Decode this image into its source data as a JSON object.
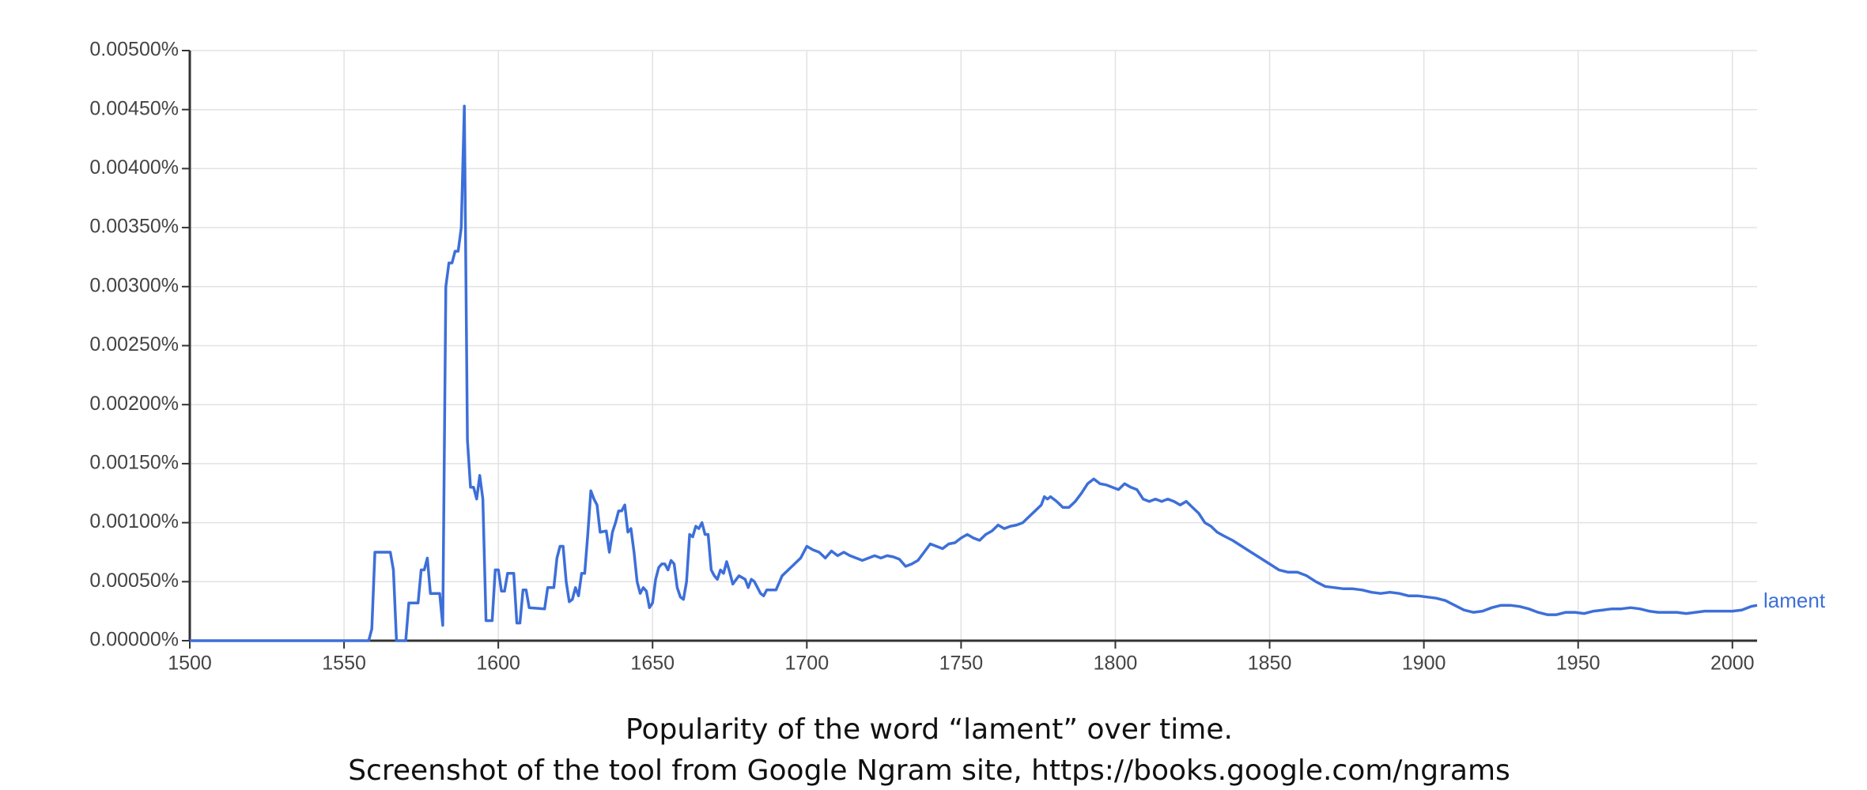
{
  "chart_data": {
    "type": "line",
    "caption_lines": [
      "Popularity of the word “lament” over time.",
      "Screenshot of the tool from Google Ngram site, https://books.google.com/ngrams"
    ],
    "xlim": [
      1500,
      2008
    ],
    "xticks": [
      1500,
      1550,
      1600,
      1650,
      1700,
      1750,
      1800,
      1850,
      1900,
      1950,
      2000
    ],
    "ylim": [
      0,
      0.005
    ],
    "yticks": [
      {
        "value": 0,
        "label": "0.00000%"
      },
      {
        "value": 0.0005,
        "label": "0.00050%"
      },
      {
        "value": 0.001,
        "label": "0.00100%"
      },
      {
        "value": 0.0015,
        "label": "0.00150%"
      },
      {
        "value": 0.002,
        "label": "0.00200%"
      },
      {
        "value": 0.0025,
        "label": "0.00250%"
      },
      {
        "value": 0.003,
        "label": "0.00300%"
      },
      {
        "value": 0.0035,
        "label": "0.00350%"
      },
      {
        "value": 0.004,
        "label": "0.00400%"
      },
      {
        "value": 0.0045,
        "label": "0.00450%"
      },
      {
        "value": 0.005,
        "label": "0.00500%"
      }
    ],
    "grid": true,
    "x": [
      1500,
      1558,
      1559,
      1560,
      1565,
      1566,
      1567,
      1570,
      1571,
      1574,
      1575,
      1576,
      1577,
      1578,
      1581,
      1582,
      1583,
      1584,
      1585,
      1586,
      1587,
      1588,
      1589,
      1590,
      1591,
      1592,
      1593,
      1594,
      1595,
      1596,
      1598,
      1599,
      1600,
      1601,
      1602,
      1603,
      1605,
      1606,
      1607,
      1608,
      1609,
      1610,
      1615,
      1616,
      1618,
      1619,
      1620,
      1621,
      1622,
      1623,
      1624,
      1625,
      1626,
      1627,
      1628,
      1629,
      1630,
      1631,
      1632,
      1633,
      1635,
      1636,
      1637,
      1638,
      1639,
      1640,
      1641,
      1642,
      1643,
      1644,
      1645,
      1646,
      1647,
      1648,
      1649,
      1650,
      1651,
      1652,
      1653,
      1654,
      1655,
      1656,
      1657,
      1658,
      1659,
      1660,
      1661,
      1662,
      1663,
      1664,
      1665,
      1666,
      1667,
      1668,
      1669,
      1670,
      1671,
      1672,
      1673,
      1674,
      1675,
      1676,
      1678,
      1680,
      1681,
      1682,
      1683,
      1685,
      1686,
      1687,
      1690,
      1692,
      1694,
      1696,
      1698,
      1700,
      1702,
      1704,
      1706,
      1708,
      1710,
      1712,
      1714,
      1716,
      1718,
      1720,
      1722,
      1724,
      1726,
      1728,
      1730,
      1732,
      1734,
      1736,
      1738,
      1740,
      1742,
      1744,
      1746,
      1748,
      1750,
      1752,
      1754,
      1756,
      1758,
      1760,
      1762,
      1764,
      1766,
      1768,
      1770,
      1772,
      1774,
      1776,
      1777,
      1778,
      1779,
      1781,
      1783,
      1785,
      1787,
      1789,
      1791,
      1793,
      1795,
      1797,
      1799,
      1801,
      1803,
      1805,
      1807,
      1809,
      1811,
      1813,
      1815,
      1817,
      1819,
      1821,
      1823,
      1825,
      1827,
      1829,
      1831,
      1833,
      1835,
      1838,
      1841,
      1844,
      1847,
      1850,
      1853,
      1856,
      1859,
      1862,
      1865,
      1868,
      1871,
      1874,
      1877,
      1880,
      1883,
      1886,
      1889,
      1892,
      1895,
      1898,
      1901,
      1904,
      1907,
      1910,
      1913,
      1916,
      1919,
      1922,
      1925,
      1928,
      1931,
      1934,
      1937,
      1940,
      1943,
      1946,
      1949,
      1952,
      1955,
      1958,
      1961,
      1964,
      1967,
      1970,
      1973,
      1976,
      1979,
      1982,
      1985,
      1988,
      1991,
      1994,
      1997,
      2000,
      2003,
      2006,
      2008
    ],
    "series": [
      {
        "name": "lament",
        "color": "#3d6fd9",
        "values": [
          0,
          0,
          0.0001,
          0.00075,
          0.00075,
          0.0006,
          0,
          0,
          0.00032,
          0.00032,
          0.0006,
          0.0006,
          0.0007,
          0.0004,
          0.0004,
          0.00013,
          0.003,
          0.0032,
          0.0032,
          0.0033,
          0.0033,
          0.0035,
          0.00453,
          0.0017,
          0.0013,
          0.0013,
          0.0012,
          0.0014,
          0.0012,
          0.00017,
          0.00017,
          0.0006,
          0.0006,
          0.00042,
          0.00042,
          0.00057,
          0.00057,
          0.00015,
          0.00015,
          0.00043,
          0.00043,
          0.00028,
          0.00027,
          0.00045,
          0.00045,
          0.0007,
          0.0008,
          0.0008,
          0.0005,
          0.00033,
          0.00035,
          0.00045,
          0.00038,
          0.00057,
          0.00057,
          0.0009,
          0.00127,
          0.0012,
          0.00115,
          0.00092,
          0.00093,
          0.00075,
          0.00092,
          0.001,
          0.0011,
          0.0011,
          0.00115,
          0.00092,
          0.00095,
          0.00075,
          0.0005,
          0.0004,
          0.00045,
          0.00042,
          0.00028,
          0.00032,
          0.00052,
          0.00062,
          0.00065,
          0.00065,
          0.0006,
          0.00068,
          0.00065,
          0.00045,
          0.00037,
          0.00035,
          0.0005,
          0.0009,
          0.00088,
          0.00097,
          0.00095,
          0.001,
          0.0009,
          0.0009,
          0.0006,
          0.00055,
          0.00052,
          0.0006,
          0.00057,
          0.00067,
          0.00058,
          0.00048,
          0.00055,
          0.00052,
          0.00045,
          0.00052,
          0.0005,
          0.0004,
          0.00038,
          0.00043,
          0.00043,
          0.00055,
          0.0006,
          0.00065,
          0.0007,
          0.0008,
          0.00077,
          0.00075,
          0.0007,
          0.00076,
          0.00072,
          0.00075,
          0.00072,
          0.0007,
          0.00068,
          0.0007,
          0.00072,
          0.0007,
          0.00072,
          0.00071,
          0.00069,
          0.00063,
          0.00065,
          0.00068,
          0.00075,
          0.00082,
          0.0008,
          0.00078,
          0.00082,
          0.00083,
          0.00087,
          0.0009,
          0.00087,
          0.00085,
          0.0009,
          0.00093,
          0.00098,
          0.00095,
          0.00097,
          0.00098,
          0.001,
          0.00105,
          0.0011,
          0.00115,
          0.00122,
          0.0012,
          0.00122,
          0.00118,
          0.00113,
          0.00113,
          0.00118,
          0.00125,
          0.00133,
          0.00137,
          0.00133,
          0.00132,
          0.0013,
          0.00128,
          0.00133,
          0.0013,
          0.00128,
          0.0012,
          0.00118,
          0.0012,
          0.00118,
          0.0012,
          0.00118,
          0.00115,
          0.00118,
          0.00113,
          0.00108,
          0.001,
          0.00097,
          0.00092,
          0.00089,
          0.00085,
          0.0008,
          0.00075,
          0.0007,
          0.00065,
          0.0006,
          0.00058,
          0.00058,
          0.00055,
          0.0005,
          0.00046,
          0.00045,
          0.00044,
          0.00044,
          0.00043,
          0.00041,
          0.0004,
          0.00041,
          0.0004,
          0.00038,
          0.00038,
          0.00037,
          0.00036,
          0.00034,
          0.0003,
          0.00026,
          0.00024,
          0.00025,
          0.00028,
          0.0003,
          0.0003,
          0.00029,
          0.00027,
          0.00024,
          0.00022,
          0.00022,
          0.00024,
          0.00024,
          0.00023,
          0.00025,
          0.00026,
          0.00027,
          0.00027,
          0.00028,
          0.00027,
          0.00025,
          0.00024,
          0.00024,
          0.00024,
          0.00023,
          0.00024,
          0.00025,
          0.00025,
          0.00025,
          0.00025,
          0.00026,
          0.00029,
          0.0003
        ]
      }
    ]
  }
}
